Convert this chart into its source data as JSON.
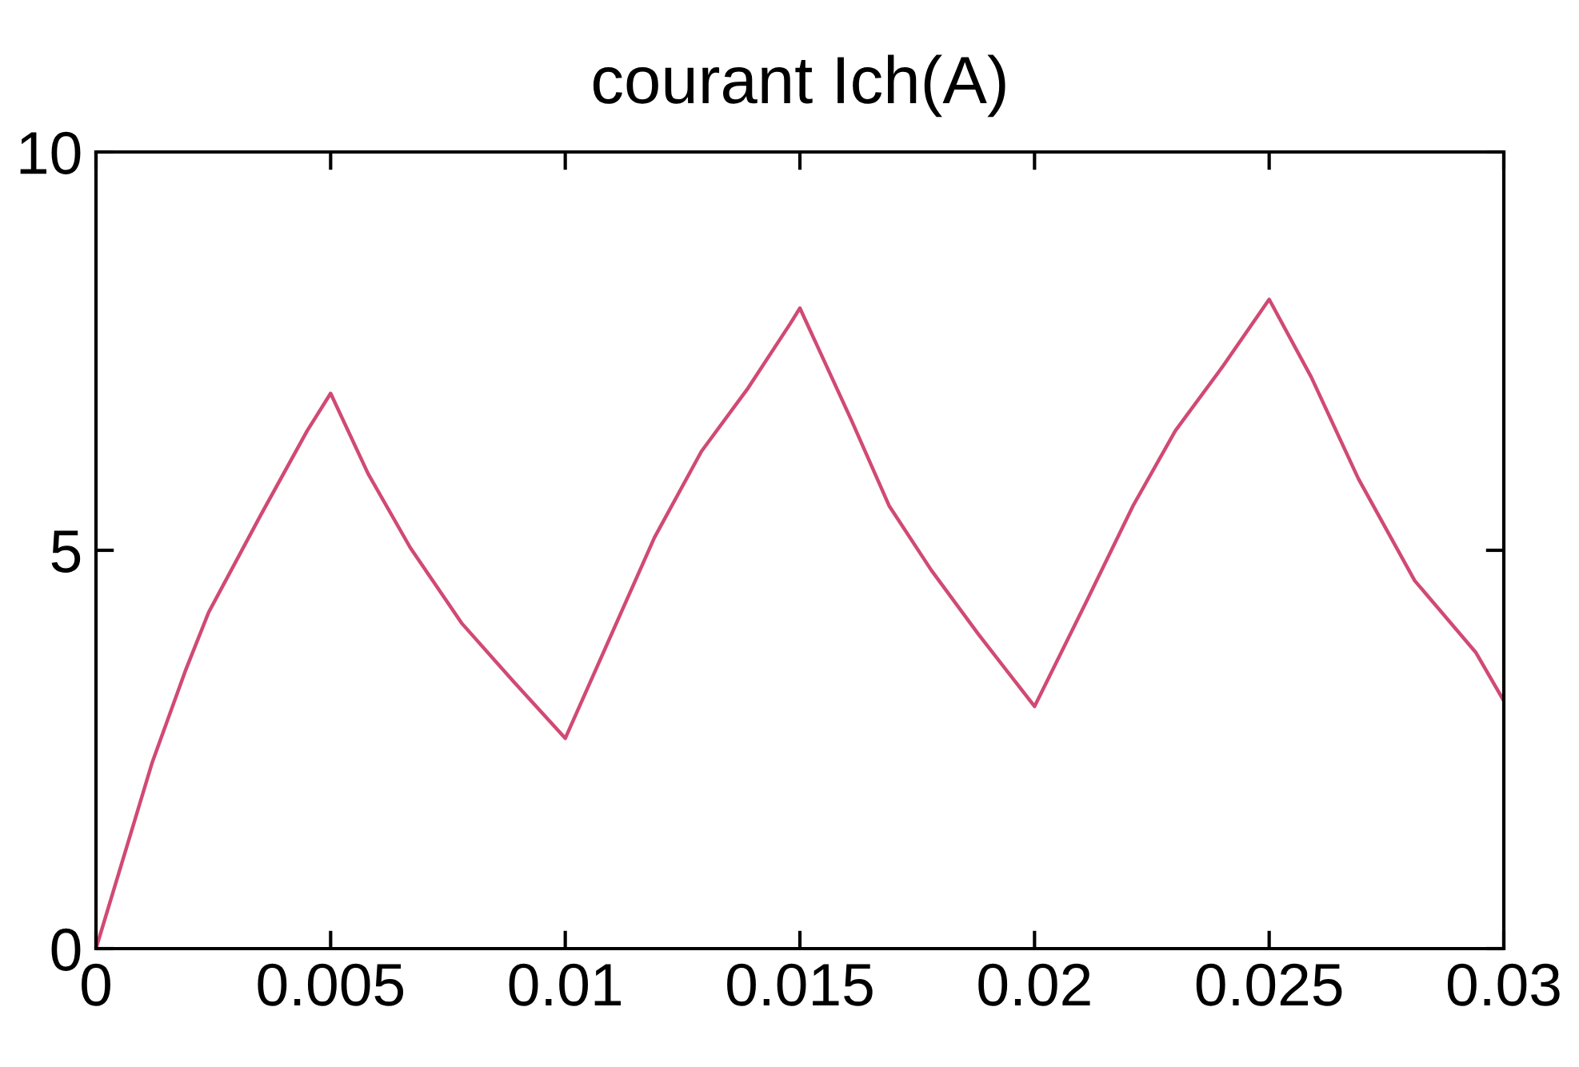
{
  "chart_data": {
    "type": "line",
    "title": "courant Ich(A)",
    "xlim": [
      0,
      0.03
    ],
    "ylim": [
      0,
      10
    ],
    "xticks": [
      0,
      0.005,
      0.01,
      0.015,
      0.02,
      0.025,
      0.03
    ],
    "yticks": [
      0,
      5,
      10
    ],
    "series": [
      {
        "color": "#d04a74",
        "x": [
          0,
          0.0012,
          0.0019,
          0.0024,
          0.0035,
          0.0045,
          0.005,
          0.0058,
          0.0067,
          0.0078,
          0.0089,
          0.01,
          0.0119,
          0.0129,
          0.0139,
          0.0148,
          0.015,
          0.0161,
          0.0169,
          0.0178,
          0.0188,
          0.02,
          0.0211,
          0.0221,
          0.023,
          0.024,
          0.025,
          0.0259,
          0.0269,
          0.0281,
          0.0294,
          0.03
        ],
        "values": [
          0,
          2.34,
          3.48,
          4.22,
          5.43,
          6.5,
          6.97,
          5.96,
          5.03,
          4.08,
          3.35,
          2.64,
          5.16,
          6.24,
          7.04,
          7.85,
          8.04,
          6.63,
          5.56,
          4.75,
          3.95,
          3.04,
          4.35,
          5.56,
          6.5,
          7.3,
          8.15,
          7.17,
          5.9,
          4.62,
          3.72,
          3.11
        ]
      }
    ]
  }
}
